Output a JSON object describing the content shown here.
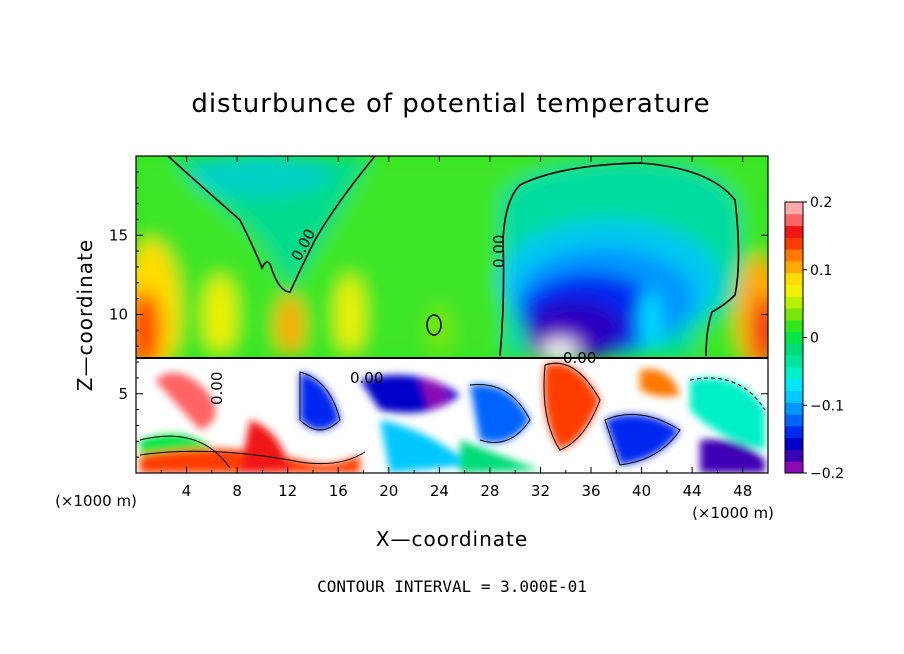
{
  "chart_data": {
    "type": "heatmap",
    "title": "disturbunce of potential temperature",
    "xlabel": "X—coordinate",
    "ylabel": "Z—coordinate",
    "x_unit": "(×1000 m)",
    "x_unit_right": "(×1000 m)",
    "footer": "CONTOUR INTERVAL = 3.000E-01",
    "xlim": [
      0,
      50
    ],
    "ylim": [
      0,
      20
    ],
    "x_ticks": [
      "4",
      "8",
      "12",
      "16",
      "20",
      "24",
      "28",
      "32",
      "36",
      "40",
      "44",
      "48"
    ],
    "y_ticks": [
      "5",
      "10",
      "15"
    ],
    "colorbar": {
      "min": -0.2,
      "max": 0.2,
      "tick_labels": [
        "0.2",
        "0.1",
        "0",
        "−0.1",
        "−0.2"
      ],
      "colors": [
        "#8a0ab4",
        "#3c00b4",
        "#0000c8",
        "#0028f0",
        "#0064ff",
        "#0096ff",
        "#00c8ff",
        "#00e6ff",
        "#00f0c8",
        "#00e6a0",
        "#00dc78",
        "#00e646",
        "#32e61e",
        "#78e60a",
        "#b4f000",
        "#f0f000",
        "#ffdc00",
        "#ffaa00",
        "#ff7800",
        "#ff3c00",
        "#f01414",
        "#ff6464",
        "#ffaaaa"
      ]
    },
    "contour_labels": [
      "0.00",
      "0.00",
      "0.00",
      "0.00",
      "0.00"
    ]
  }
}
